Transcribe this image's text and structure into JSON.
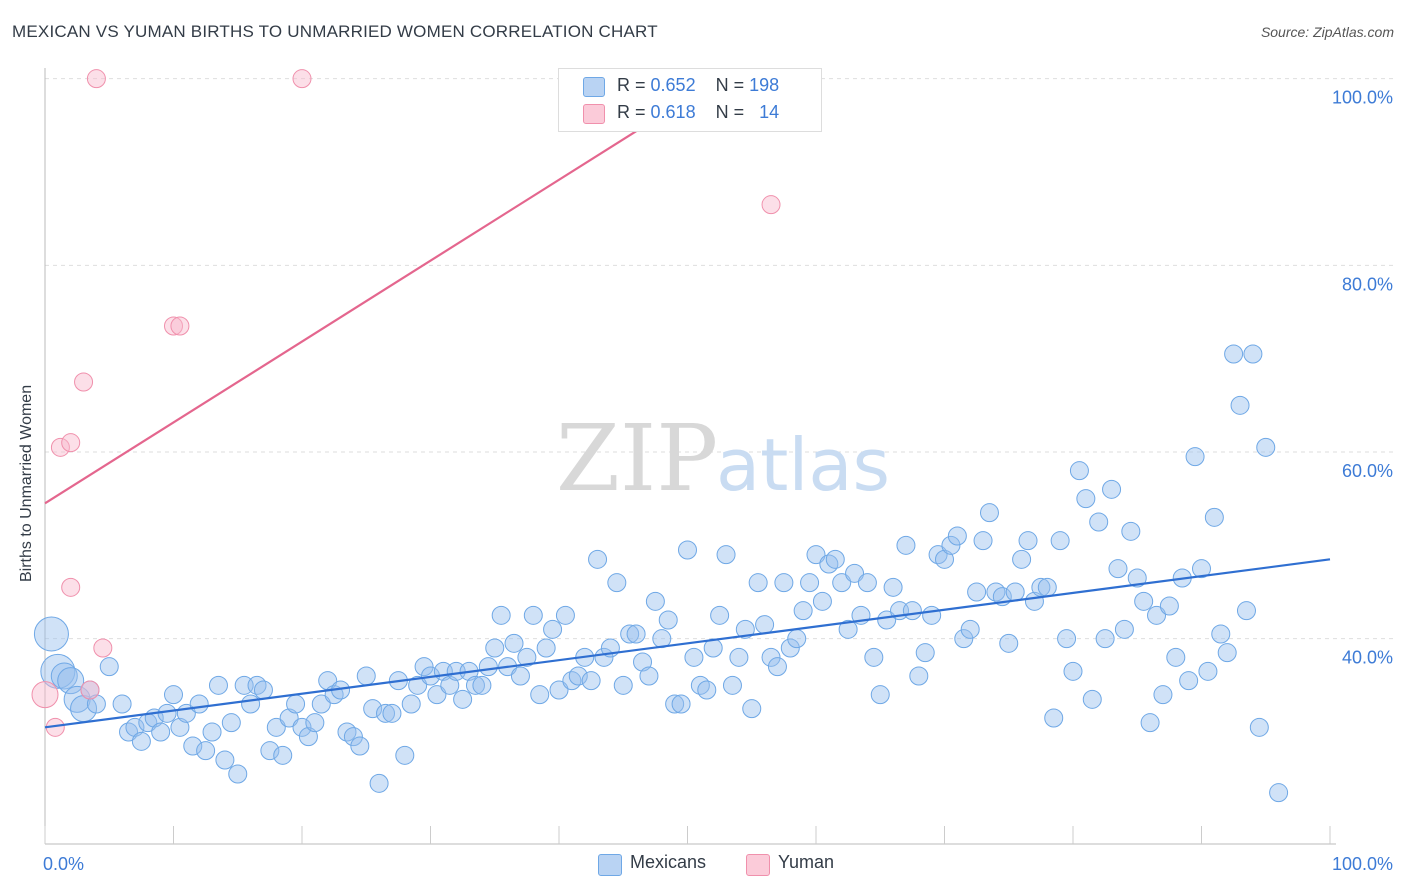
{
  "title": "MEXICAN VS YUMAN BIRTHS TO UNMARRIED WOMEN CORRELATION CHART",
  "source": "Source: ZipAtlas.com",
  "watermark": {
    "zip": "ZIP",
    "atlas": "atlas"
  },
  "legend": {
    "mexicans": {
      "r_label": "R =",
      "r_value": "0.652",
      "n_label": "N =",
      "n_value": "198",
      "name": "Mexicans",
      "color": "#6fa8e6"
    },
    "yuman": {
      "r_label": "R =",
      "r_value": "0.618",
      "n_label": "N =",
      "n_value": "14",
      "name": "Yuman",
      "color": "#f090ac"
    }
  },
  "chart_data": {
    "type": "scatter",
    "title": "MEXICAN VS YUMAN BIRTHS TO UNMARRIED WOMEN CORRELATION CHART",
    "xlabel": "",
    "ylabel": "Births to Unmarried Women",
    "xlim": [
      0,
      100
    ],
    "ylim": [
      18,
      102
    ],
    "x_tick_labels": [
      "0.0%",
      "100.0%"
    ],
    "y_tick_labels": [
      "40.0%",
      "60.0%",
      "80.0%",
      "100.0%"
    ],
    "y_ticks": [
      40,
      60,
      80,
      100
    ],
    "grid": true,
    "legend_position": "top-center",
    "series": [
      {
        "name": "Mexicans",
        "color": "#6fa8e6",
        "trend": {
          "x": [
            0,
            100
          ],
          "y": [
            30.5,
            48.5
          ],
          "color": "#2f6fd1"
        },
        "points": [
          [
            0.5,
            40.5,
            3
          ],
          [
            1,
            36.5,
            3
          ],
          [
            1.5,
            36,
            2
          ],
          [
            2,
            35.5,
            2
          ],
          [
            2.5,
            33.5,
            2
          ],
          [
            3,
            32.5,
            2
          ],
          [
            3.5,
            34.5,
            1
          ],
          [
            4,
            33,
            1
          ],
          [
            5,
            37,
            1
          ],
          [
            6,
            33,
            1
          ],
          [
            6.5,
            30,
            1
          ],
          [
            7,
            30.5,
            1
          ],
          [
            7.5,
            29,
            1
          ],
          [
            8,
            31,
            1
          ],
          [
            8.5,
            31.5,
            1
          ],
          [
            9,
            30,
            1
          ],
          [
            9.5,
            32,
            1
          ],
          [
            10,
            34,
            1
          ],
          [
            10.5,
            30.5,
            1
          ],
          [
            11,
            32,
            1
          ],
          [
            11.5,
            28.5,
            1
          ],
          [
            12,
            33,
            1
          ],
          [
            12.5,
            28,
            1
          ],
          [
            13,
            30,
            1
          ],
          [
            13.5,
            35,
            1
          ],
          [
            14,
            27,
            1
          ],
          [
            14.5,
            31,
            1
          ],
          [
            15,
            25.5,
            1
          ],
          [
            15.5,
            35,
            1
          ],
          [
            16,
            33,
            1
          ],
          [
            16.5,
            35,
            1
          ],
          [
            17,
            34.5,
            1
          ],
          [
            17.5,
            28,
            1
          ],
          [
            18,
            30.5,
            1
          ],
          [
            18.5,
            27.5,
            1
          ],
          [
            19,
            31.5,
            1
          ],
          [
            19.5,
            33,
            1
          ],
          [
            20,
            30.5,
            1
          ],
          [
            20.5,
            29.5,
            1
          ],
          [
            21,
            31,
            1
          ],
          [
            21.5,
            33,
            1
          ],
          [
            22,
            35.5,
            1
          ],
          [
            22.5,
            34,
            1
          ],
          [
            23,
            34.5,
            1
          ],
          [
            23.5,
            30,
            1
          ],
          [
            24,
            29.5,
            1
          ],
          [
            24.5,
            28.5,
            1
          ],
          [
            25,
            36,
            1
          ],
          [
            25.5,
            32.5,
            1
          ],
          [
            26,
            24.5,
            1
          ],
          [
            26.5,
            32,
            1
          ],
          [
            27,
            32,
            1
          ],
          [
            27.5,
            35.5,
            1
          ],
          [
            28,
            27.5,
            1
          ],
          [
            28.5,
            33,
            1
          ],
          [
            29,
            35,
            1
          ],
          [
            29.5,
            37,
            1
          ],
          [
            30,
            36,
            1
          ],
          [
            30.5,
            34,
            1
          ],
          [
            31,
            36.5,
            1
          ],
          [
            31.5,
            35,
            1
          ],
          [
            32,
            36.5,
            1
          ],
          [
            32.5,
            33.5,
            1
          ],
          [
            33,
            36.5,
            1
          ],
          [
            33.5,
            35,
            1
          ],
          [
            34,
            35,
            1
          ],
          [
            34.5,
            37,
            1
          ],
          [
            35,
            39,
            1
          ],
          [
            35.5,
            42.5,
            1
          ],
          [
            36,
            37,
            1
          ],
          [
            36.5,
            39.5,
            1
          ],
          [
            37,
            36,
            1
          ],
          [
            37.5,
            38,
            1
          ],
          [
            38,
            42.5,
            1
          ],
          [
            38.5,
            34,
            1
          ],
          [
            39,
            39,
            1
          ],
          [
            39.5,
            41,
            1
          ],
          [
            40,
            34.5,
            1
          ],
          [
            40.5,
            42.5,
            1
          ],
          [
            41,
            35.5,
            1
          ],
          [
            41.5,
            36,
            1
          ],
          [
            42,
            38,
            1
          ],
          [
            42.5,
            35.5,
            1
          ],
          [
            43,
            48.5,
            1
          ],
          [
            43.5,
            38,
            1
          ],
          [
            44,
            39,
            1
          ],
          [
            44.5,
            46,
            1
          ],
          [
            45,
            35,
            1
          ],
          [
            45.5,
            40.5,
            1
          ],
          [
            46,
            40.5,
            1
          ],
          [
            46.5,
            37.5,
            1
          ],
          [
            47,
            36,
            1
          ],
          [
            47.5,
            44,
            1
          ],
          [
            48,
            40,
            1
          ],
          [
            48.5,
            42,
            1
          ],
          [
            49,
            33,
            1
          ],
          [
            49.5,
            33,
            1
          ],
          [
            50,
            49.5,
            1
          ],
          [
            50.5,
            38,
            1
          ],
          [
            51,
            35,
            1
          ],
          [
            51.5,
            34.5,
            1
          ],
          [
            52,
            39,
            1
          ],
          [
            52.5,
            42.5,
            1
          ],
          [
            53,
            49,
            1
          ],
          [
            53.5,
            35,
            1
          ],
          [
            54,
            38,
            1
          ],
          [
            54.5,
            41,
            1
          ],
          [
            55,
            32.5,
            1
          ],
          [
            55.5,
            46,
            1
          ],
          [
            56,
            41.5,
            1
          ],
          [
            56.5,
            38,
            1
          ],
          [
            57,
            37,
            1
          ],
          [
            57.5,
            46,
            1
          ],
          [
            58,
            39,
            1
          ],
          [
            58.5,
            40,
            1
          ],
          [
            59,
            43,
            1
          ],
          [
            59.5,
            46,
            1
          ],
          [
            60,
            49,
            1
          ],
          [
            60.5,
            44,
            1
          ],
          [
            61,
            48,
            1
          ],
          [
            61.5,
            48.5,
            1
          ],
          [
            62,
            46,
            1
          ],
          [
            62.5,
            41,
            1
          ],
          [
            63,
            47,
            1
          ],
          [
            63.5,
            42.5,
            1
          ],
          [
            64,
            46,
            1
          ],
          [
            64.5,
            38,
            1
          ],
          [
            65,
            34,
            1
          ],
          [
            65.5,
            42,
            1
          ],
          [
            66,
            45.5,
            1
          ],
          [
            66.5,
            43,
            1
          ],
          [
            67,
            50,
            1
          ],
          [
            67.5,
            43,
            1
          ],
          [
            68,
            36,
            1
          ],
          [
            68.5,
            38.5,
            1
          ],
          [
            69,
            42.5,
            1
          ],
          [
            69.5,
            49,
            1
          ],
          [
            70,
            48.5,
            1
          ],
          [
            70.5,
            50,
            1
          ],
          [
            71,
            51,
            1
          ],
          [
            71.5,
            40,
            1
          ],
          [
            72,
            41,
            1
          ],
          [
            72.5,
            45,
            1
          ],
          [
            73,
            50.5,
            1
          ],
          [
            73.5,
            53.5,
            1
          ],
          [
            74,
            45,
            1
          ],
          [
            74.5,
            44.5,
            1
          ],
          [
            75,
            39.5,
            1
          ],
          [
            75.5,
            45,
            1
          ],
          [
            76,
            48.5,
            1
          ],
          [
            76.5,
            50.5,
            1
          ],
          [
            77,
            44,
            1
          ],
          [
            77.5,
            45.5,
            1
          ],
          [
            78,
            45.5,
            1
          ],
          [
            78.5,
            31.5,
            1
          ],
          [
            79,
            50.5,
            1
          ],
          [
            79.5,
            40,
            1
          ],
          [
            80,
            36.5,
            1
          ],
          [
            80.5,
            58,
            1
          ],
          [
            81,
            55,
            1
          ],
          [
            81.5,
            33.5,
            1
          ],
          [
            82,
            52.5,
            1
          ],
          [
            82.5,
            40,
            1
          ],
          [
            83,
            56,
            1
          ],
          [
            83.5,
            47.5,
            1
          ],
          [
            84,
            41,
            1
          ],
          [
            84.5,
            51.5,
            1
          ],
          [
            85,
            46.5,
            1
          ],
          [
            85.5,
            44,
            1
          ],
          [
            86,
            31,
            1
          ],
          [
            86.5,
            42.5,
            1
          ],
          [
            87,
            34,
            1
          ],
          [
            87.5,
            43.5,
            1
          ],
          [
            88,
            38,
            1
          ],
          [
            88.5,
            46.5,
            1
          ],
          [
            89,
            35.5,
            1
          ],
          [
            89.5,
            59.5,
            1
          ],
          [
            90,
            47.5,
            1
          ],
          [
            90.5,
            36.5,
            1
          ],
          [
            91,
            53,
            1
          ],
          [
            91.5,
            40.5,
            1
          ],
          [
            92,
            38.5,
            1
          ],
          [
            92.5,
            70.5,
            1
          ],
          [
            93,
            65,
            1
          ],
          [
            93.5,
            43,
            1
          ],
          [
            94,
            70.5,
            1
          ],
          [
            94.5,
            30.5,
            1
          ],
          [
            95,
            60.5,
            1
          ],
          [
            96,
            23.5,
            1
          ]
        ]
      },
      {
        "name": "Yuman",
        "color": "#f090ac",
        "trend": {
          "x": [
            0,
            52.5
          ],
          "y": [
            54.5,
            100
          ],
          "color": "#e4668e"
        },
        "points": [
          [
            0,
            34,
            2
          ],
          [
            0.8,
            30.5,
            1
          ],
          [
            1.2,
            60.5,
            1
          ],
          [
            2,
            61,
            1
          ],
          [
            2,
            45.5,
            1
          ],
          [
            3,
            67.5,
            1
          ],
          [
            3.5,
            34.5,
            1
          ],
          [
            4,
            100,
            1
          ],
          [
            4.5,
            39,
            1
          ],
          [
            10,
            73.5,
            1
          ],
          [
            10.5,
            73.5,
            1
          ],
          [
            20,
            100,
            1
          ],
          [
            56.5,
            86.5,
            1
          ]
        ]
      }
    ]
  }
}
